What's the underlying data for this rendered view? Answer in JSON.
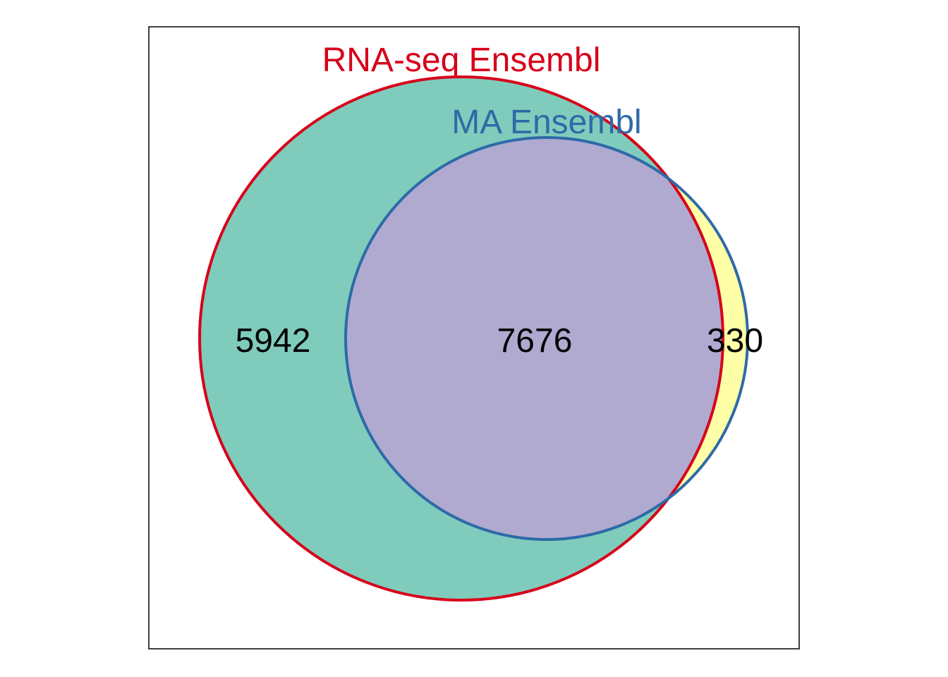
{
  "sets": {
    "a": {
      "label": "RNA-seq Ensembl",
      "stroke": "#d7001a",
      "fill": "#7fccbc"
    },
    "b": {
      "label": "MA Ensembl",
      "stroke": "#2e6aa8",
      "fill": "#ffffa8"
    }
  },
  "overlap_fill": "#b0aad0",
  "frame_color": "#000000",
  "regions": {
    "only_a": "5942",
    "both": "7676",
    "only_b": "330"
  }
}
